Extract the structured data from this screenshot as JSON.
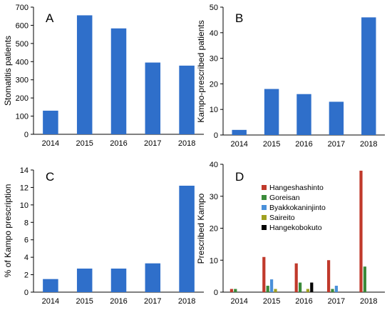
{
  "chart_data": [
    {
      "panel": "A",
      "type": "bar",
      "categories": [
        "2014",
        "2015",
        "2016",
        "2017",
        "2018"
      ],
      "values": [
        130,
        655,
        583,
        395,
        378
      ],
      "ylabel": "Stomatitis patients",
      "xlabel": "",
      "ylim": [
        0,
        700
      ],
      "yticks": [
        0,
        100,
        200,
        300,
        400,
        500,
        600,
        700
      ],
      "color": "#2f6fca"
    },
    {
      "panel": "B",
      "type": "bar",
      "categories": [
        "2014",
        "2015",
        "2016",
        "2017",
        "2018"
      ],
      "values": [
        2,
        18,
        16,
        13,
        46
      ],
      "ylabel": "Kampo-prescribed patients",
      "xlabel": "",
      "ylim": [
        0,
        50
      ],
      "yticks": [
        0,
        10,
        20,
        30,
        40,
        50
      ],
      "color": "#2f6fca"
    },
    {
      "panel": "C",
      "type": "bar",
      "categories": [
        "2014",
        "2015",
        "2016",
        "2017",
        "2018"
      ],
      "values": [
        1.5,
        2.7,
        2.7,
        3.3,
        12.2
      ],
      "ylabel": "% of Kampo prescription",
      "xlabel": "",
      "ylim": [
        0,
        14
      ],
      "yticks": [
        0,
        2,
        4,
        6,
        8,
        10,
        12,
        14
      ],
      "color": "#2f6fca"
    },
    {
      "panel": "D",
      "type": "bar",
      "categories": [
        "2014",
        "2015",
        "2016",
        "2017",
        "2018"
      ],
      "series": [
        {
          "name": "Hangeshashinto",
          "color": "#c0392b",
          "values": [
            1,
            11,
            9,
            10,
            38
          ]
        },
        {
          "name": "Goreisan",
          "color": "#3a8a3a",
          "values": [
            1,
            2,
            3,
            1,
            8
          ]
        },
        {
          "name": "Byakkokaninjinto",
          "color": "#4a90d9",
          "values": [
            0,
            4,
            0,
            2,
            0
          ]
        },
        {
          "name": "Saireito",
          "color": "#a0a020",
          "values": [
            0,
            1,
            1,
            0,
            0
          ]
        },
        {
          "name": "Hangekobokuto",
          "color": "#000000",
          "values": [
            0,
            0,
            3,
            0,
            0
          ]
        }
      ],
      "ylabel": "Prescribed Kampo",
      "xlabel": "",
      "ylim": [
        0,
        40
      ],
      "yticks": [
        0,
        10,
        20,
        30,
        40
      ],
      "legend_position": "upper-left"
    }
  ]
}
